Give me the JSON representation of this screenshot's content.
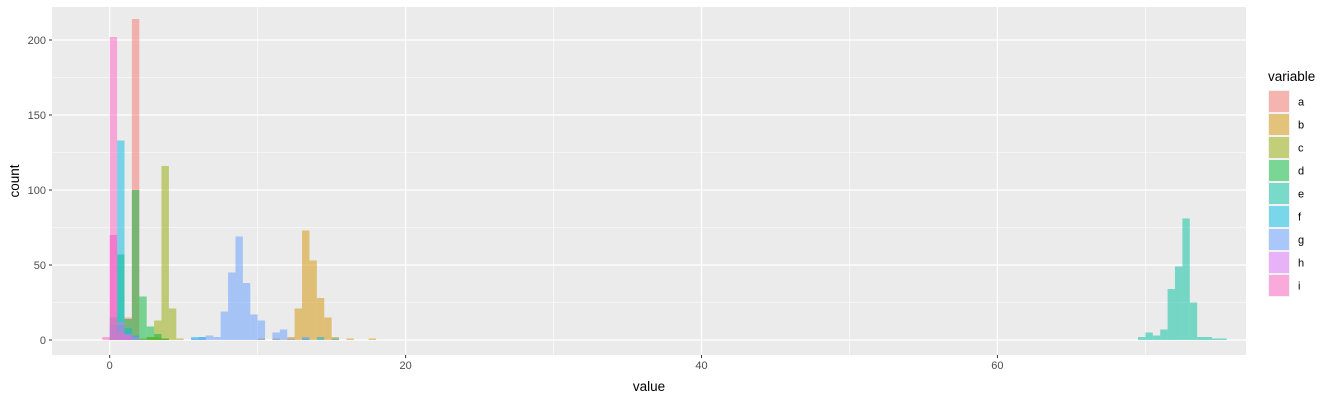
{
  "chart_data": {
    "type": "bar",
    "xlabel": "value",
    "ylabel": "count",
    "xlim": [
      -3.9,
      76.8
    ],
    "ylim": [
      -10,
      222
    ],
    "x_ticks": [
      0,
      20,
      40,
      60
    ],
    "x_tick_labels": [
      "0",
      "20",
      "40",
      "60"
    ],
    "y_ticks": [
      0,
      50,
      100,
      150,
      200
    ],
    "y_tick_labels": [
      "0",
      "50",
      "100",
      "150",
      "200"
    ],
    "grid": true,
    "legend_title": "variable",
    "legend_position": "right",
    "bin_width": 0.5,
    "series": [
      {
        "name": "a",
        "color": "#F8766D",
        "bins": [
          [
            0.0,
            70
          ],
          [
            0.5,
            10
          ],
          [
            1.0,
            15
          ],
          [
            1.5,
            214
          ]
        ]
      },
      {
        "name": "b",
        "color": "#D39200",
        "bins": [
          [
            2.0,
            1
          ],
          [
            2.5,
            2
          ],
          [
            3.0,
            2
          ],
          [
            3.5,
            1
          ],
          [
            10.0,
            1
          ],
          [
            11.0,
            1
          ],
          [
            12.0,
            2
          ],
          [
            12.5,
            21
          ],
          [
            13.0,
            73
          ],
          [
            13.5,
            53
          ],
          [
            14.0,
            28
          ],
          [
            14.5,
            15
          ],
          [
            15.0,
            2
          ],
          [
            16.0,
            1
          ],
          [
            17.5,
            1
          ]
        ]
      },
      {
        "name": "c",
        "color": "#93AA00",
        "bins": [
          [
            2.5,
            2
          ],
          [
            3.0,
            13
          ],
          [
            3.5,
            116
          ],
          [
            4.0,
            21
          ],
          [
            4.5,
            1
          ]
        ]
      },
      {
        "name": "d",
        "color": "#00BA38",
        "bins": [
          [
            0.0,
            15
          ],
          [
            0.5,
            57
          ],
          [
            1.0,
            14
          ],
          [
            1.5,
            100
          ],
          [
            2.0,
            29
          ],
          [
            2.5,
            9
          ],
          [
            3.0,
            4
          ],
          [
            3.5,
            1
          ]
        ]
      },
      {
        "name": "e",
        "color": "#00C19F",
        "bins": [
          [
            69.5,
            2
          ],
          [
            70.0,
            5
          ],
          [
            70.5,
            3
          ],
          [
            71.0,
            7
          ],
          [
            71.5,
            34
          ],
          [
            72.0,
            49
          ],
          [
            72.5,
            81
          ],
          [
            73.0,
            25
          ],
          [
            73.5,
            2
          ],
          [
            74.0,
            2
          ],
          [
            74.5,
            1
          ],
          [
            75.0,
            1
          ]
        ]
      },
      {
        "name": "f",
        "color": "#00B9E3",
        "bins": [
          [
            0.0,
            10
          ],
          [
            0.5,
            133
          ],
          [
            1.0,
            8
          ],
          [
            1.5,
            3
          ],
          [
            5.5,
            2
          ],
          [
            6.0,
            2
          ],
          [
            13.0,
            1
          ],
          [
            14.0,
            2
          ],
          [
            15.0,
            1
          ]
        ]
      },
      {
        "name": "g",
        "color": "#619CFF",
        "bins": [
          [
            1.0,
            3
          ],
          [
            5.5,
            1
          ],
          [
            6.0,
            2
          ],
          [
            6.5,
            3
          ],
          [
            7.0,
            2
          ],
          [
            7.5,
            19
          ],
          [
            8.0,
            45
          ],
          [
            8.5,
            69
          ],
          [
            9.0,
            38
          ],
          [
            9.5,
            17
          ],
          [
            10.0,
            13
          ],
          [
            11.0,
            5
          ],
          [
            11.5,
            7
          ],
          [
            12.0,
            1
          ],
          [
            13.0,
            2
          ]
        ]
      },
      {
        "name": "h",
        "color": "#DB72FB",
        "bins": [
          [
            0.0,
            70
          ],
          [
            0.5,
            12
          ],
          [
            1.0,
            4
          ],
          [
            1.5,
            2
          ]
        ]
      },
      {
        "name": "i",
        "color": "#FF61C3",
        "bins": [
          [
            -0.5,
            2
          ],
          [
            0.0,
            202
          ],
          [
            0.5,
            5
          ],
          [
            1.0,
            3
          ]
        ]
      }
    ]
  }
}
